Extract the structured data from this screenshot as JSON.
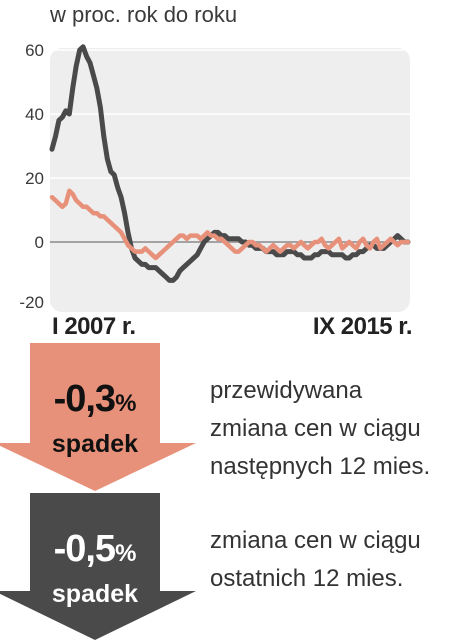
{
  "chart_data": {
    "type": "line",
    "title": "",
    "subtitle": "w proc. rok do roku",
    "x_start_label": "I 2007 r.",
    "x_end_label": "IX 2015 r.",
    "ylim": [
      -20,
      60
    ],
    "yticks": [
      60,
      40,
      20,
      0,
      -20
    ],
    "grid": true,
    "colors": {
      "dark": "#4a4a4a",
      "salmon": "#e8917a",
      "panel": "#eeeeee"
    },
    "series": [
      {
        "key": "dark",
        "values": [
          29,
          33,
          38,
          39,
          41,
          40,
          48,
          55,
          60,
          61,
          58,
          56,
          52,
          48,
          42,
          33,
          26,
          22,
          21,
          17,
          14,
          9,
          3,
          -2,
          -5,
          -6,
          -7,
          -7,
          -8,
          -8,
          -8,
          -9,
          -10,
          -11,
          -12,
          -12,
          -11,
          -9,
          -8,
          -7,
          -6,
          -5,
          -4,
          -2,
          0,
          1,
          2,
          3,
          3,
          2,
          2,
          1,
          1,
          1,
          1,
          0,
          0,
          -1,
          -1,
          -2,
          -2,
          -2,
          -3,
          -3,
          -3,
          -4,
          -4,
          -4,
          -3,
          -3,
          -3,
          -4,
          -4,
          -5,
          -5,
          -5,
          -4,
          -4,
          -3,
          -3,
          -3,
          -4,
          -4,
          -4,
          -4,
          -5,
          -5,
          -4,
          -4,
          -3,
          -3,
          -2,
          -1,
          -1,
          -2,
          -2,
          -2,
          -1,
          0,
          1,
          2,
          1,
          0,
          0
        ]
      },
      {
        "key": "salmon",
        "values": [
          14,
          13,
          12,
          11,
          12,
          16,
          15,
          13,
          12,
          11,
          11,
          10,
          9,
          9,
          8,
          8,
          7,
          6,
          5,
          4,
          3,
          1,
          -1,
          -2,
          -3,
          -3,
          -3,
          -2,
          -3,
          -4,
          -5,
          -4,
          -3,
          -2,
          -1,
          0,
          1,
          2,
          2,
          1,
          2,
          2,
          2,
          1,
          2,
          3,
          2,
          2,
          1,
          1,
          0,
          -1,
          -2,
          -3,
          -3,
          -2,
          -1,
          0,
          0,
          -1,
          -1,
          -2,
          -3,
          -2,
          -1,
          -2,
          -3,
          -2,
          -1,
          -1,
          -2,
          -1,
          0,
          -1,
          -2,
          -1,
          0,
          0,
          1,
          -1,
          -2,
          -1,
          0,
          1,
          -2,
          -1,
          0,
          -1,
          -2,
          0,
          1,
          -1,
          -2,
          0,
          1,
          -2,
          -1,
          0,
          1,
          0,
          -1,
          0,
          0,
          0
        ]
      }
    ]
  },
  "forecast": {
    "value": "-0,3",
    "percent": "%",
    "label": "spadek",
    "description": [
      "przewidywana",
      "zmiana cen w ciągu",
      "następnych 12 mies."
    ]
  },
  "past": {
    "value": "-0,5",
    "percent": "%",
    "label": "spadek",
    "description": [
      "zmiana cen w ciągu",
      "ostatnich 12 mies."
    ]
  },
  "arrow_colors": {
    "forecast": "#e8917a",
    "past": "#4a4a4a",
    "past_label": "#ffffff",
    "forecast_label": "#111111"
  }
}
